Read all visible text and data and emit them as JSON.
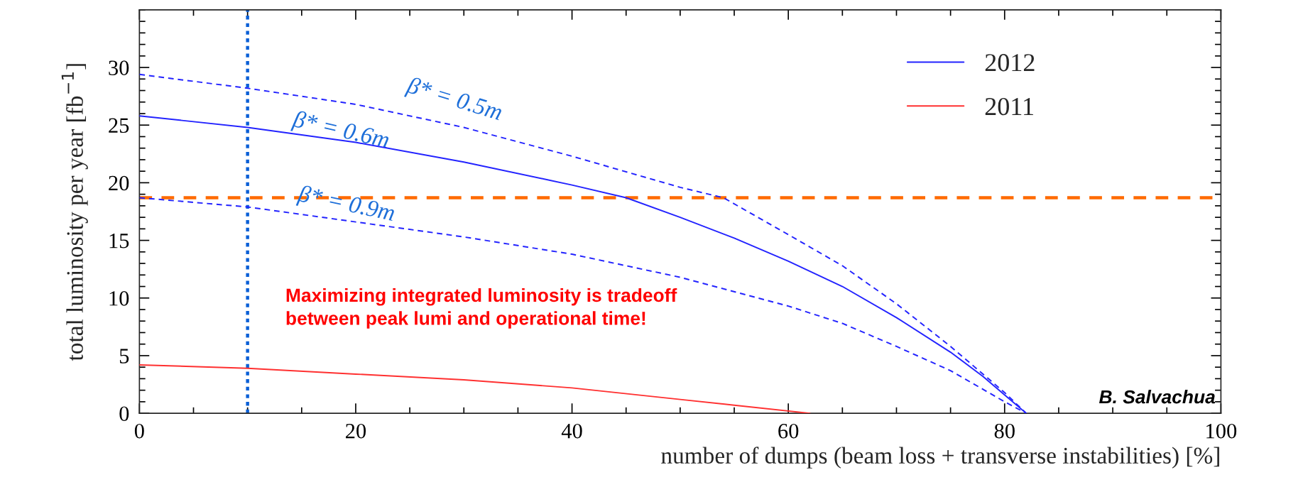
{
  "chart_data": {
    "type": "line",
    "xlabel": "number of dumps (beam loss + transverse instabilities) [%]",
    "ylabel": "total luminosity per year [fb$^{−1}$]",
    "xlim": [
      0,
      100
    ],
    "ylim": [
      0,
      35
    ],
    "xticks": [
      0,
      20,
      40,
      60,
      80,
      100
    ],
    "yticks": [
      0,
      5,
      10,
      15,
      20,
      25,
      30
    ],
    "legend": "top right",
    "grid": false,
    "series": [
      {
        "name": "2012",
        "color": "#2323ff",
        "line_style": "solid",
        "x": [
          0,
          10,
          20,
          30,
          40,
          45,
          50,
          55,
          60,
          65,
          70,
          75,
          78,
          80,
          82
        ],
        "values": [
          25.8,
          24.8,
          23.5,
          21.8,
          19.8,
          18.7,
          17.0,
          15.2,
          13.2,
          11.0,
          8.3,
          5.3,
          3.2,
          1.6,
          0
        ]
      },
      {
        "color": "#2323ff",
        "line_style": "dashed",
        "x": [
          0,
          10,
          20,
          30,
          40,
          50,
          54,
          60,
          65,
          70,
          75,
          80,
          82
        ],
        "values": [
          29.4,
          28.2,
          26.8,
          24.8,
          22.3,
          19.6,
          18.7,
          15.5,
          12.8,
          9.5,
          5.8,
          1.8,
          0
        ]
      },
      {
        "color": "#2323ff",
        "line_style": "dashed",
        "x": [
          0,
          10,
          20,
          30,
          40,
          50,
          60,
          65,
          70,
          75,
          80,
          82
        ],
        "values": [
          18.7,
          17.9,
          16.6,
          15.3,
          13.8,
          11.8,
          9.3,
          7.8,
          5.8,
          3.7,
          1.0,
          0
        ]
      },
      {
        "name": "2011",
        "color": "#ff3030",
        "line_style": "solid",
        "x": [
          0,
          10,
          20,
          30,
          40,
          50,
          55,
          62
        ],
        "values": [
          4.2,
          3.9,
          3.4,
          2.9,
          2.2,
          1.2,
          0.7,
          0
        ]
      }
    ],
    "ref_lines": [
      {
        "axis": "y",
        "value": 18.7,
        "color": "#ff6a00",
        "line_style": "dashed"
      },
      {
        "axis": "x",
        "value": 10,
        "color": "#0a5fd6",
        "line_style": "dotted"
      }
    ],
    "annotations": [
      "β* = 0.5m",
      "β* = 0.6m",
      "β* = 0.9m",
      "Maximizing integrated luminosity is tradeoff\nbetween peak lumi and operational time!",
      "B. Salvachua"
    ]
  }
}
